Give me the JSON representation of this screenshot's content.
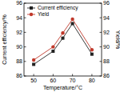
{
  "chart_data": {
    "type": "line",
    "x_label": "Temperature/°C",
    "y_label": "Current efficiency/%",
    "y2_label": "Yield/%",
    "x": [
      50,
      60,
      65,
      70,
      80
    ],
    "xlim": [
      45,
      85
    ],
    "xticks": [
      50,
      60,
      70,
      80
    ],
    "ylim": [
      86,
      96
    ],
    "yticks": [
      86,
      88,
      90,
      92,
      94,
      96
    ],
    "y2lim": [
      86,
      96
    ],
    "y2ticks": [
      86,
      88,
      90,
      92,
      94,
      96
    ],
    "grid": false,
    "legend": "upper left",
    "series": [
      {
        "name": "Current efficiency",
        "color": "#222222",
        "marker": "square",
        "values": [
          87.6,
          89.4,
          91.2,
          93.2,
          89.0
        ]
      },
      {
        "name": "Yield",
        "color": "#c0392b",
        "marker": "circle",
        "axis": "y2",
        "values": [
          88.2,
          90.0,
          91.9,
          93.8,
          89.6
        ]
      }
    ]
  }
}
